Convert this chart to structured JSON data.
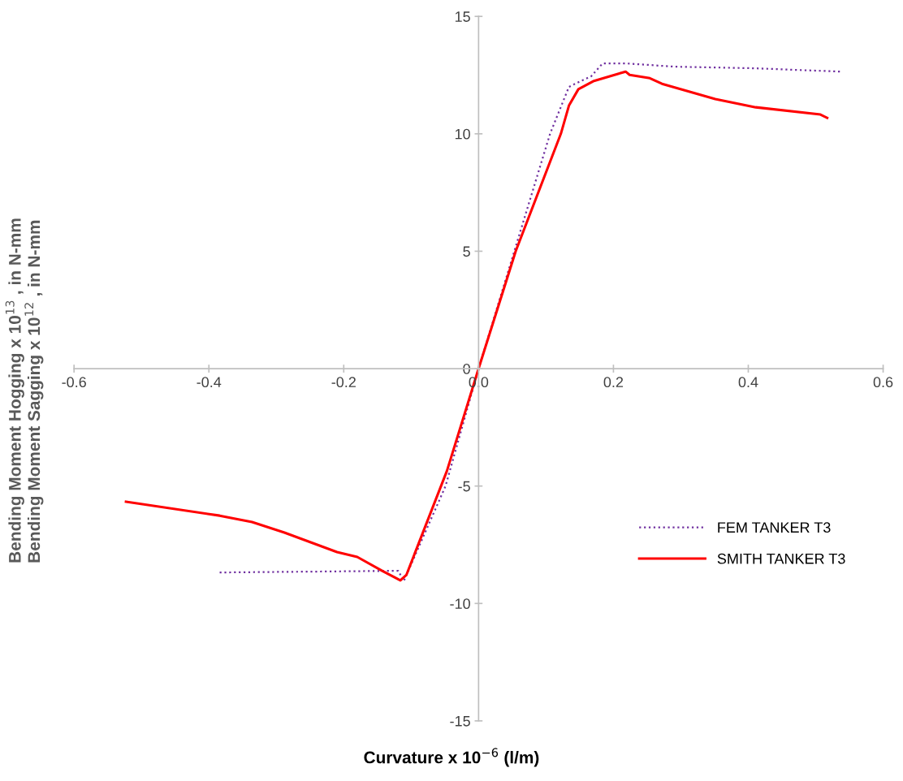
{
  "chart_data": {
    "type": "line",
    "xlabel": "Curvature x 10$^{−6}$ (l/m)",
    "ylabel": "Bending Moment Hogging x 10$^{13}$ , in N-mm\nBending Moment Sagging x 10$^{12}$ , in N-mm",
    "xlim": [
      -0.6,
      0.6
    ],
    "xticks": [
      {
        "value": -0.6,
        "label": "-0.6"
      },
      {
        "value": -0.4,
        "label": "-0.4"
      },
      {
        "value": -0.2,
        "label": "-0.2"
      },
      {
        "value": 0,
        "label": "0.0"
      },
      {
        "value": 0.2,
        "label": "0.2"
      },
      {
        "value": 0.4,
        "label": "0.4"
      },
      {
        "value": 0.6,
        "label": "0.6"
      }
    ],
    "ylim": [
      -15,
      15
    ],
    "yticks": [
      -15,
      -10,
      -5,
      0,
      5,
      10,
      15
    ],
    "grid": false,
    "legend": "bottom right",
    "marker": "none",
    "series": [
      {
        "name": "FEM TANKER T3",
        "color": "#7030a0",
        "line_style": "dotted",
        "x": [
          -0.384,
          -0.119,
          -0.111,
          -0.049,
          0,
          0.106,
          0.134,
          0.151,
          0.167,
          0.184,
          0.218,
          0.29,
          0.41,
          0.536
        ],
        "values": [
          -8.68,
          -8.61,
          -9.05,
          -5.0,
          0,
          10.0,
          12.0,
          12.24,
          12.45,
          13.0,
          13.0,
          12.86,
          12.79,
          12.65
        ]
      },
      {
        "name": "SMITH TANKER T3",
        "color": "#ff0000",
        "line_style": "solid",
        "x": [
          -0.523,
          -0.384,
          -0.336,
          -0.288,
          -0.21,
          -0.18,
          -0.143,
          -0.116,
          -0.107,
          -0.047,
          0,
          0.055,
          0.122,
          0.134,
          0.148,
          0.17,
          0.218,
          0.224,
          0.254,
          0.272,
          0.351,
          0.411,
          0.507,
          0.517
        ],
        "values": [
          -5.67,
          -6.26,
          -6.53,
          -6.98,
          -7.81,
          -8.02,
          -8.61,
          -9.02,
          -8.78,
          -4.36,
          0,
          5.0,
          10.0,
          11.2,
          11.9,
          12.24,
          12.65,
          12.51,
          12.37,
          12.13,
          11.48,
          11.13,
          10.82,
          10.68
        ]
      }
    ]
  }
}
